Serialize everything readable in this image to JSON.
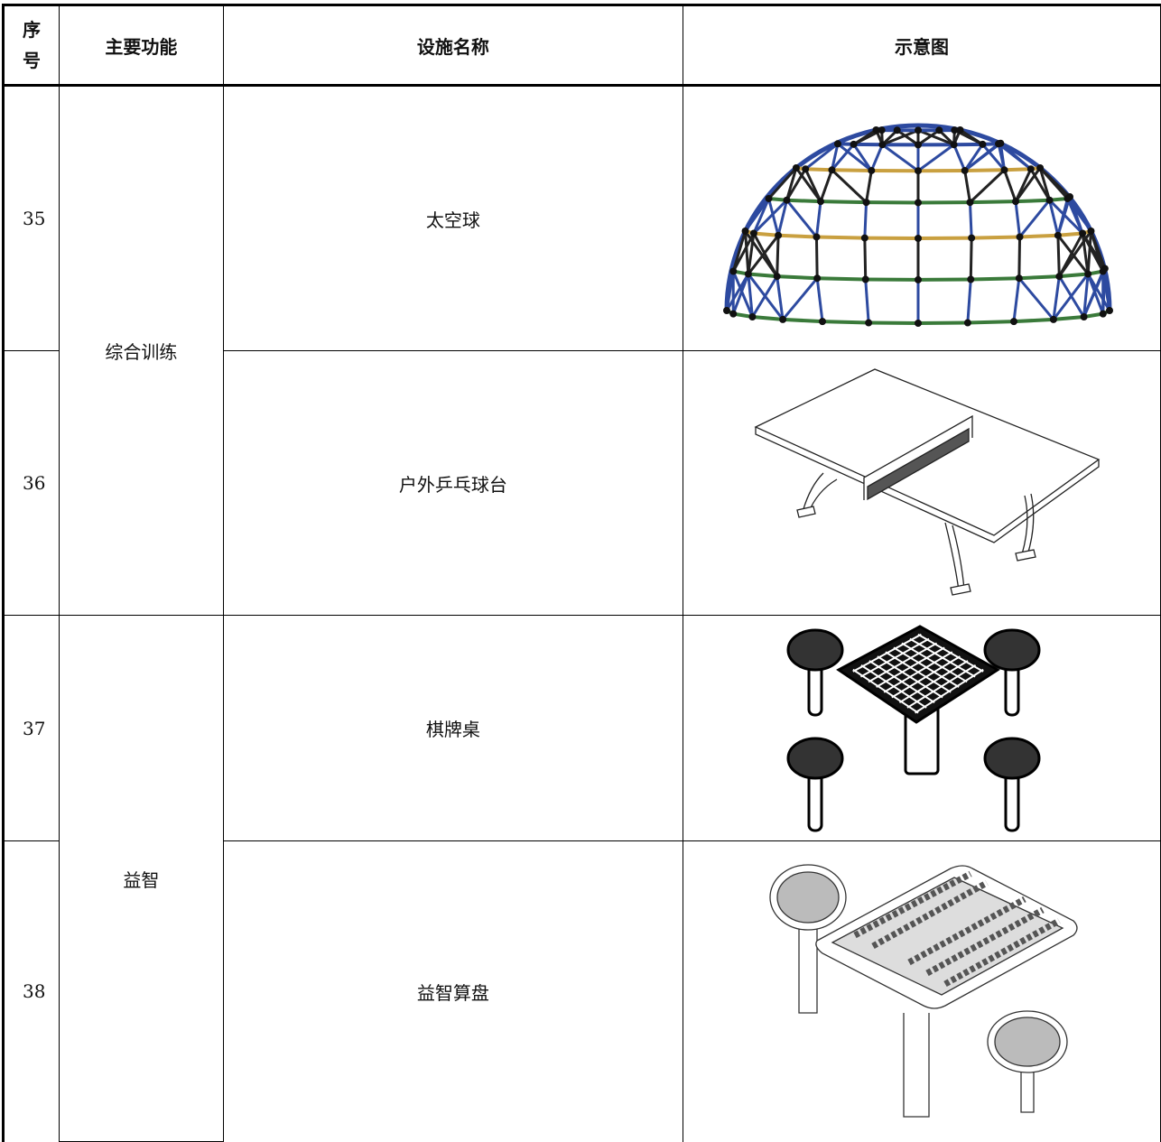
{
  "table": {
    "header": [
      "序号",
      "主要功能",
      "设施名称",
      "示意图"
    ],
    "rows": [
      {
        "no": "35",
        "function": "综合训练",
        "name": "太空球"
      },
      {
        "no": "36",
        "name": "户外乒乓球台"
      },
      {
        "no": "37",
        "function": "益智",
        "name": "棋牌桌"
      },
      {
        "no": "38",
        "name": "益智算盘"
      }
    ]
  }
}
